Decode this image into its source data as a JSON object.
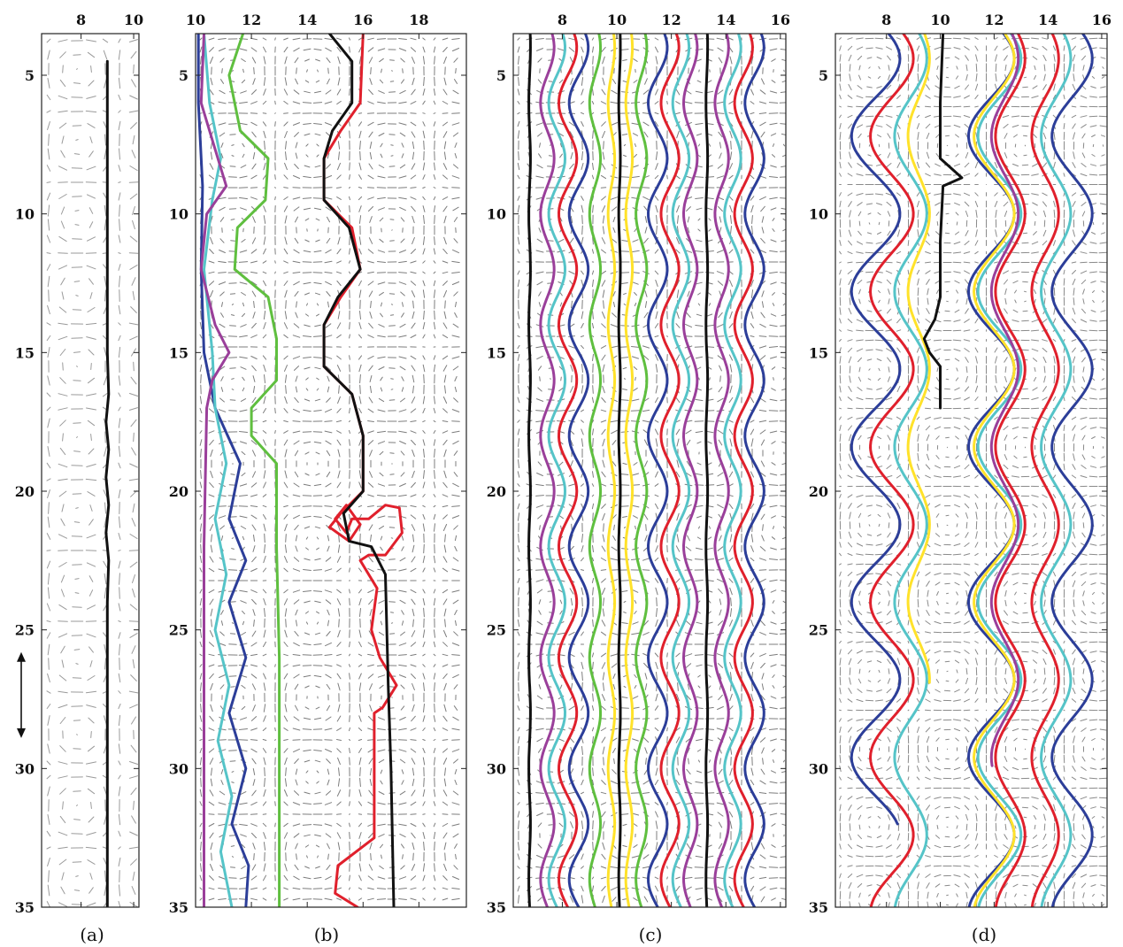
{
  "chart_data": [
    {
      "panel": "(a)",
      "type": "line",
      "xticks": [
        "8",
        "10"
      ],
      "yticks": [
        "5",
        "10",
        "15",
        "20",
        "25",
        "30",
        "35"
      ],
      "xlim": [
        6.5,
        10.2
      ],
      "ylim": [
        3.5,
        35
      ],
      "x_tick_values": [
        8,
        10
      ],
      "y_tick_values": [
        5,
        10,
        15,
        20,
        25,
        30,
        35
      ],
      "background": "velocity-vector-field",
      "annotation": "double-headed-arrow",
      "series": [
        {
          "color": "#111111",
          "points": [
            [
              9.0,
              4.5
            ],
            [
              9.0,
              8
            ],
            [
              9.0,
              12
            ],
            [
              9.0,
              15
            ],
            [
              9.05,
              16.5
            ],
            [
              8.95,
              17.5
            ],
            [
              9.05,
              18.5
            ],
            [
              8.95,
              19.5
            ],
            [
              9.05,
              20.5
            ],
            [
              8.95,
              21.5
            ],
            [
              9.05,
              22.5
            ],
            [
              9.0,
              24
            ],
            [
              9.0,
              28
            ],
            [
              9.0,
              32
            ],
            [
              9.0,
              35
            ]
          ]
        }
      ]
    },
    {
      "panel": "(b)",
      "type": "line",
      "xticks": [
        "10",
        "12",
        "14",
        "16",
        "18"
      ],
      "yticks": [
        "5",
        "10",
        "15",
        "20",
        "25",
        "30",
        "35"
      ],
      "xlim": [
        10,
        19.7
      ],
      "ylim": [
        3.5,
        35
      ],
      "x_tick_values": [
        10,
        12,
        14,
        16,
        18
      ],
      "y_tick_values": [
        5,
        10,
        15,
        20,
        25,
        30,
        35
      ],
      "background": "velocity-vector-field",
      "series": [
        {
          "color": "#2c3e99",
          "points": [
            [
              10.1,
              3.5
            ],
            [
              10.1,
              6
            ],
            [
              10.25,
              9
            ],
            [
              10.2,
              12
            ],
            [
              10.3,
              15
            ],
            [
              10.7,
              17
            ],
            [
              11.6,
              19
            ],
            [
              11.2,
              21
            ],
            [
              11.8,
              22.5
            ],
            [
              11.2,
              24
            ],
            [
              11.8,
              26
            ],
            [
              11.2,
              28
            ],
            [
              11.8,
              30
            ],
            [
              11.3,
              32
            ],
            [
              11.9,
              33.5
            ],
            [
              11.8,
              35
            ]
          ]
        },
        {
          "color": "#55c4c8",
          "points": [
            [
              10.3,
              3.5
            ],
            [
              10.5,
              6
            ],
            [
              10.9,
              8
            ],
            [
              10.6,
              9.5
            ],
            [
              10.3,
              12
            ],
            [
              10.6,
              15
            ],
            [
              10.7,
              17
            ],
            [
              11.1,
              19
            ],
            [
              10.7,
              21
            ],
            [
              11.1,
              23
            ],
            [
              10.7,
              25
            ],
            [
              11.2,
              27
            ],
            [
              10.8,
              29
            ],
            [
              11.3,
              31
            ],
            [
              10.9,
              33
            ],
            [
              11.3,
              35
            ]
          ]
        },
        {
          "color": "#9a3f9a",
          "points": [
            [
              10.3,
              3.5
            ],
            [
              10.2,
              6
            ],
            [
              10.8,
              8
            ],
            [
              11.1,
              9
            ],
            [
              10.4,
              10
            ],
            [
              10.2,
              12
            ],
            [
              10.7,
              14
            ],
            [
              11.2,
              15
            ],
            [
              10.6,
              16
            ],
            [
              10.4,
              17
            ],
            [
              10.3,
              22
            ],
            [
              10.3,
              35
            ]
          ]
        },
        {
          "color": "#5fbf3f",
          "points": [
            [
              11.7,
              3.5
            ],
            [
              11.2,
              5
            ],
            [
              11.6,
              7
            ],
            [
              12.6,
              8
            ],
            [
              12.5,
              9.5
            ],
            [
              11.5,
              10.5
            ],
            [
              11.4,
              12
            ],
            [
              12.6,
              13
            ],
            [
              12.9,
              14.5
            ],
            [
              12.9,
              16
            ],
            [
              12.0,
              17
            ],
            [
              12.0,
              18
            ],
            [
              12.9,
              19
            ],
            [
              12.9,
              22
            ],
            [
              13.0,
              26
            ],
            [
              13.0,
              30
            ],
            [
              13.0,
              35
            ]
          ]
        },
        {
          "color": "#e0202c",
          "points": [
            [
              16.0,
              3.5
            ],
            [
              15.9,
              6
            ],
            [
              15.2,
              7
            ],
            [
              14.6,
              8
            ],
            [
              14.6,
              9.5
            ],
            [
              15.6,
              10.5
            ],
            [
              15.9,
              12
            ],
            [
              15.2,
              13
            ],
            [
              14.6,
              14
            ],
            [
              14.6,
              15.5
            ],
            [
              15.6,
              16.5
            ],
            [
              16.0,
              18
            ],
            [
              16.0,
              20
            ],
            [
              15.2,
              20.8
            ],
            [
              14.8,
              21.3
            ],
            [
              15.5,
              21.8
            ],
            [
              15.9,
              21.2
            ],
            [
              15.4,
              20.5
            ],
            [
              15.0,
              21
            ],
            [
              15.4,
              21.5
            ],
            [
              15.6,
              21
            ],
            [
              16.2,
              21
            ],
            [
              16.8,
              20.5
            ],
            [
              17.3,
              20.6
            ],
            [
              17.4,
              21.5
            ],
            [
              16.8,
              22.3
            ],
            [
              16.2,
              22.3
            ],
            [
              15.9,
              22.5
            ],
            [
              16.5,
              23.5
            ],
            [
              16.3,
              25
            ],
            [
              16.6,
              26
            ],
            [
              17.2,
              27
            ],
            [
              16.7,
              27.8
            ],
            [
              16.4,
              28
            ],
            [
              16.4,
              30
            ],
            [
              16.4,
              32.5
            ],
            [
              15.1,
              33.5
            ],
            [
              15.0,
              34.5
            ],
            [
              15.8,
              35
            ]
          ]
        },
        {
          "color": "#111111",
          "points": [
            [
              14.8,
              3.5
            ],
            [
              15.6,
              4.5
            ],
            [
              15.6,
              6
            ],
            [
              14.9,
              7
            ],
            [
              14.6,
              8
            ],
            [
              14.6,
              9.5
            ],
            [
              15.5,
              10.5
            ],
            [
              15.9,
              12
            ],
            [
              15.1,
              13
            ],
            [
              14.6,
              14
            ],
            [
              14.6,
              15.5
            ],
            [
              15.6,
              16.5
            ],
            [
              16.0,
              18
            ],
            [
              16.0,
              20
            ],
            [
              15.3,
              20.8
            ],
            [
              15.5,
              21.8
            ],
            [
              16.3,
              22
            ],
            [
              16.8,
              23
            ],
            [
              16.9,
              27
            ],
            [
              17.0,
              30
            ],
            [
              17.1,
              35
            ]
          ]
        }
      ]
    },
    {
      "panel": "(c)",
      "type": "line",
      "xticks": [
        "8",
        "10",
        "12",
        "14",
        "16"
      ],
      "yticks": [
        "5",
        "10",
        "15",
        "20",
        "25",
        "30",
        "35"
      ],
      "xlim": [
        6.2,
        16.2
      ],
      "ylim": [
        3.5,
        35
      ],
      "x_tick_values": [
        8,
        10,
        12,
        14,
        16
      ],
      "y_tick_values": [
        5,
        10,
        15,
        20,
        25,
        30,
        35
      ],
      "background": "velocity-vector-field",
      "wave_period": 4,
      "series": [
        {
          "color": "#111111",
          "baseline": 6.8,
          "amplitude": 0.03
        },
        {
          "color": "#9a3f9a",
          "baseline": 7.45,
          "amplitude": 0.25
        },
        {
          "color": "#55c4c8",
          "baseline": 7.8,
          "amplitude": 0.3
        },
        {
          "color": "#e0202c",
          "baseline": 8.2,
          "amplitude": 0.33
        },
        {
          "color": "#2c3e99",
          "baseline": 8.6,
          "amplitude": 0.35
        },
        {
          "color": "#5fbf3f",
          "baseline": 9.2,
          "amplitude": 0.2
        },
        {
          "color": "#ffe22a",
          "baseline": 9.8,
          "amplitude": 0.12
        },
        {
          "color": "#111111",
          "baseline": 10.1,
          "amplitude": 0.03
        },
        {
          "color": "#ffe22a",
          "baseline": 10.45,
          "amplitude": 0.12
        },
        {
          "color": "#5fbf3f",
          "baseline": 10.9,
          "amplitude": 0.2
        },
        {
          "color": "#2c3e99",
          "baseline": 11.5,
          "amplitude": 0.35
        },
        {
          "color": "#e0202c",
          "baseline": 11.95,
          "amplitude": 0.33
        },
        {
          "color": "#55c4c8",
          "baseline": 12.35,
          "amplitude": 0.3
        },
        {
          "color": "#9a3f9a",
          "baseline": 12.7,
          "amplitude": 0.25
        },
        {
          "color": "#111111",
          "baseline": 13.3,
          "amplitude": 0.03
        },
        {
          "color": "#9a3f9a",
          "baseline": 13.85,
          "amplitude": 0.25
        },
        {
          "color": "#55c4c8",
          "baseline": 14.25,
          "amplitude": 0.3
        },
        {
          "color": "#e0202c",
          "baseline": 14.65,
          "amplitude": 0.33
        },
        {
          "color": "#2c3e99",
          "baseline": 15.05,
          "amplitude": 0.35
        }
      ]
    },
    {
      "panel": "(d)",
      "type": "line",
      "xticks": [
        "8",
        "10",
        "12",
        "14",
        "16"
      ],
      "yticks": [
        "5",
        "10",
        "15",
        "20",
        "25",
        "30",
        "35"
      ],
      "xlim": [
        6.1,
        16.2
      ],
      "ylim": [
        3.5,
        35
      ],
      "x_tick_values": [
        8,
        10,
        12,
        14,
        16
      ],
      "y_tick_values": [
        5,
        10,
        15,
        20,
        25,
        30,
        35
      ],
      "background": "velocity-vector-field",
      "wave_period": 5.6,
      "series": [
        {
          "color": "#2c3e99",
          "baseline": 7.6,
          "amplitude": 0.9,
          "y_end": 32
        },
        {
          "color": "#e0202c",
          "baseline": 8.2,
          "amplitude": 0.8
        },
        {
          "color": "#55c4c8",
          "baseline": 8.9,
          "amplitude": 0.6
        },
        {
          "color": "#ffe22a",
          "baseline": 9.2,
          "amplitude": 0.4,
          "y_end": 27
        },
        {
          "color": "#111111",
          "points": [
            [
              10.1,
              3.5
            ],
            [
              10.0,
              6
            ],
            [
              10.0,
              8
            ],
            [
              10.8,
              8.7
            ],
            [
              10.1,
              9
            ],
            [
              10.0,
              11
            ],
            [
              10.0,
              13
            ],
            [
              9.8,
              13.8
            ],
            [
              9.4,
              14.5
            ],
            [
              9.6,
              15
            ],
            [
              10.0,
              15.5
            ],
            [
              10.0,
              17
            ]
          ]
        },
        {
          "color": "#2c3e99",
          "baseline": 11.9,
          "amplitude": 0.85
        },
        {
          "color": "#55c4c8",
          "baseline": 12.2,
          "amplitude": 0.8
        },
        {
          "color": "#ffe22a",
          "baseline": 12.0,
          "amplitude": 0.75
        },
        {
          "color": "#9a3f9a",
          "baseline": 12.4,
          "amplitude": 0.5,
          "y_end": 30
        },
        {
          "color": "#e0202c",
          "baseline": 12.6,
          "amplitude": 0.55
        },
        {
          "color": "#e0202c",
          "baseline": 13.9,
          "amplitude": 0.5
        },
        {
          "color": "#55c4c8",
          "baseline": 14.3,
          "amplitude": 0.55
        },
        {
          "color": "#2c3e99",
          "baseline": 14.9,
          "amplitude": 0.75
        }
      ]
    }
  ]
}
